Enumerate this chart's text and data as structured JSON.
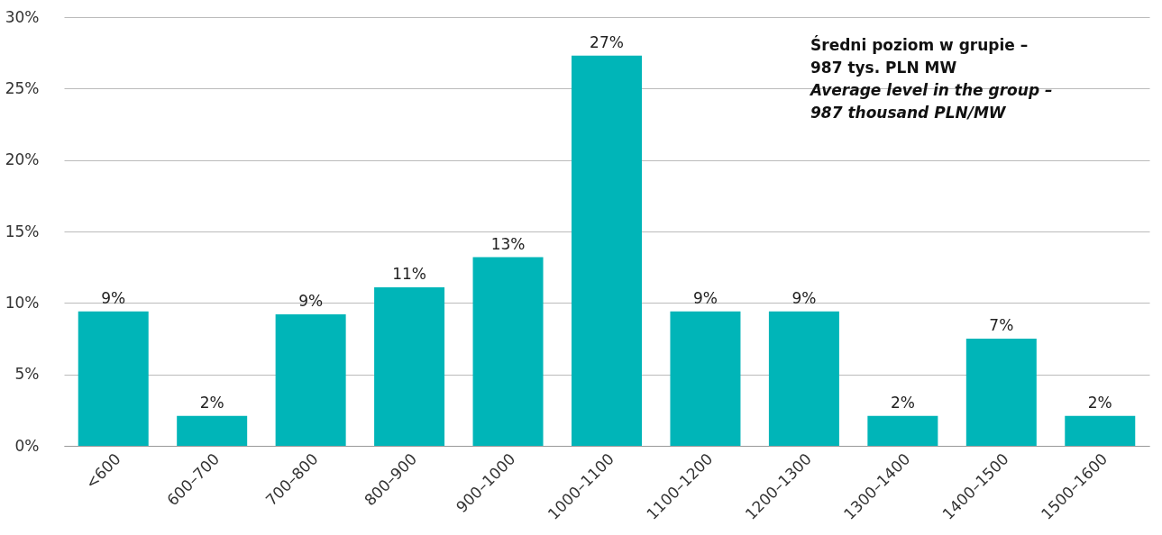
{
  "chart_data": {
    "type": "bar",
    "categories": [
      "<600",
      "600–700",
      "700–800",
      "800–900",
      "900–1000",
      "1000–1100",
      "1100–1200",
      "1200–1300",
      "1300–1400",
      "1400–1500",
      "1500–1600"
    ],
    "values": [
      9.4,
      2.1,
      9.2,
      11.1,
      13.2,
      27.3,
      9.4,
      9.4,
      2.1,
      7.5,
      2.1
    ],
    "value_labels": [
      "9%",
      "2%",
      "9%",
      "11%",
      "13%",
      "27%",
      "9%",
      "9%",
      "2%",
      "7%",
      "2%"
    ],
    "color": "#00b5b8",
    "ylim": [
      0,
      30
    ],
    "yticks": [
      {
        "value": 0,
        "label": "0%"
      },
      {
        "value": 5,
        "label": "5%"
      },
      {
        "value": 10,
        "label": "10%"
      },
      {
        "value": 15,
        "label": "15%"
      },
      {
        "value": 20,
        "label": "20%"
      },
      {
        "value": 25,
        "label": "25%"
      },
      {
        "value": 30,
        "label": "30%"
      }
    ],
    "grid": "y",
    "annotations": [
      "Średni poziom w grupie –",
      "987 tys. PLN MW",
      "Average level in the group –",
      "987 thousand PLN/MW"
    ]
  }
}
